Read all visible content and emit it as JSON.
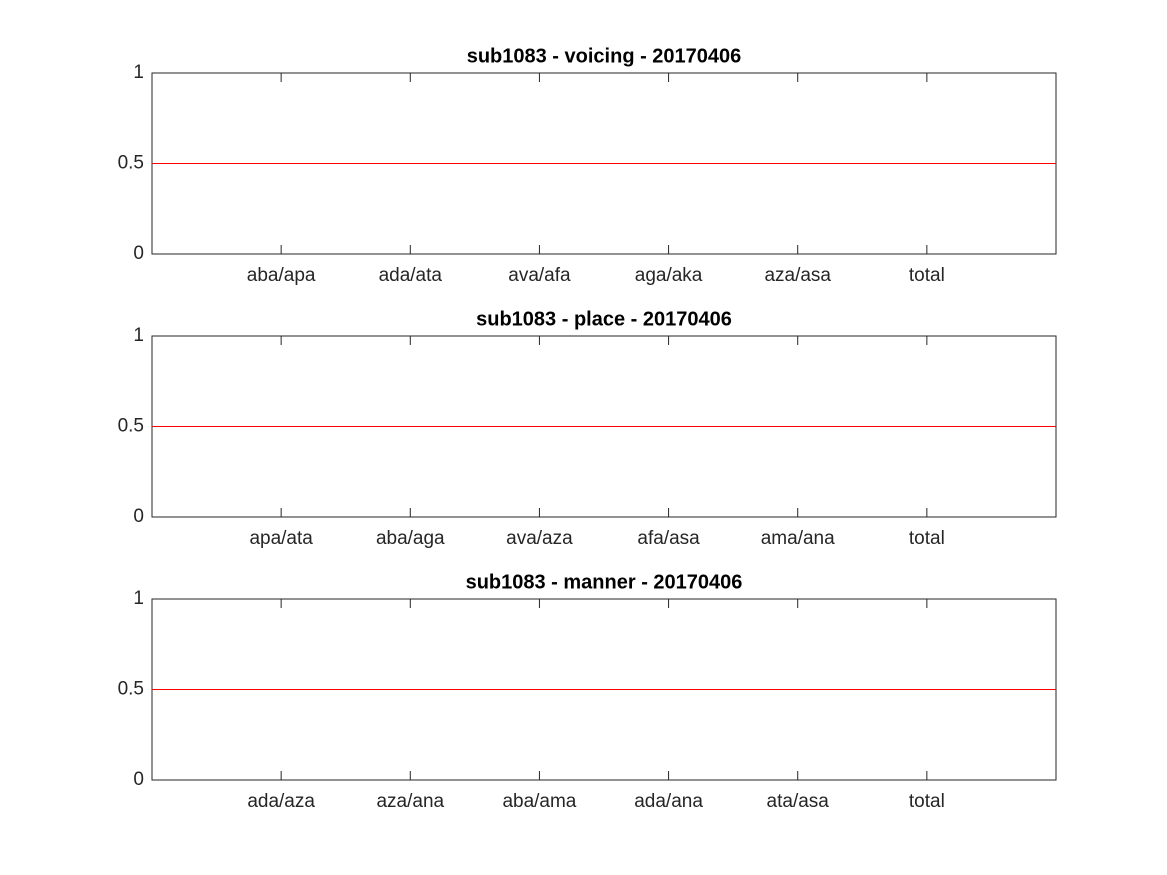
{
  "chart_data": [
    {
      "type": "bar",
      "title": "sub1083 - voicing - 20170406",
      "categories": [
        "aba/apa",
        "ada/ata",
        "ava/afa",
        "aga/aka",
        "aza/asa",
        "total"
      ],
      "ylim": [
        0,
        1
      ],
      "yticks": [
        0,
        0.5,
        1
      ],
      "reference_line": {
        "value": 0.5,
        "color": "#ff0000"
      }
    },
    {
      "type": "bar",
      "title": "sub1083 - place - 20170406",
      "categories": [
        "apa/ata",
        "aba/aga",
        "ava/aza",
        "afa/asa",
        "ama/ana",
        "total"
      ],
      "ylim": [
        0,
        1
      ],
      "yticks": [
        0,
        0.5,
        1
      ],
      "reference_line": {
        "value": 0.5,
        "color": "#ff0000"
      }
    },
    {
      "type": "bar",
      "title": "sub1083 - manner - 20170406",
      "categories": [
        "ada/aza",
        "aza/ana",
        "aba/ama",
        "ada/ana",
        "ata/asa",
        "total"
      ],
      "ylim": [
        0,
        1
      ],
      "yticks": [
        0,
        0.5,
        1
      ],
      "reference_line": {
        "value": 0.5,
        "color": "#ff0000"
      }
    }
  ]
}
